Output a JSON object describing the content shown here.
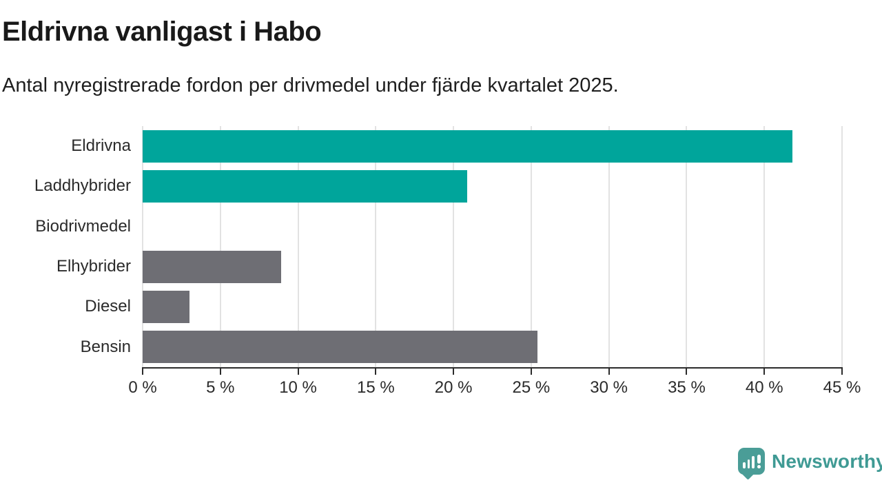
{
  "page": {
    "background": "#ffffff"
  },
  "header": {
    "title": "Eldrivna vanligast i Habo",
    "subtitle": "Antal nyregistrerade fordon per drivmedel under fjärde kvartalet 2025."
  },
  "chart_data": {
    "type": "bar",
    "orientation": "horizontal",
    "title": "Eldrivna vanligast i Habo",
    "subtitle": "Antal nyregistrerade fordon per drivmedel under fjärde kvartalet 2025.",
    "categories": [
      "Eldrivna",
      "Laddhybrider",
      "Biodrivmedel",
      "Elhybrider",
      "Diesel",
      "Bensin"
    ],
    "values": [
      41.8,
      20.9,
      0,
      8.9,
      3.0,
      25.4
    ],
    "unit": "%",
    "bar_colors": [
      "#00a59b",
      "#00a59b",
      "#00a59b",
      "#6e6e74",
      "#6e6e74",
      "#6e6e74"
    ],
    "xlim": [
      0,
      45
    ],
    "x_ticks": [
      0,
      5,
      10,
      15,
      20,
      25,
      30,
      35,
      40,
      45
    ],
    "x_tick_labels": [
      "0 %",
      "5 %",
      "10 %",
      "15 %",
      "20 %",
      "25 %",
      "30 %",
      "35 %",
      "40 %",
      "45 %"
    ],
    "grid": "vertical",
    "gridline_color": "#e2e2e2",
    "axis_color": "#2b2b2b",
    "legend": "none"
  },
  "footer": {
    "brand": "Newsworthy",
    "logo_color": "#4a9d97",
    "wordmark_color": "#3f9a94"
  }
}
